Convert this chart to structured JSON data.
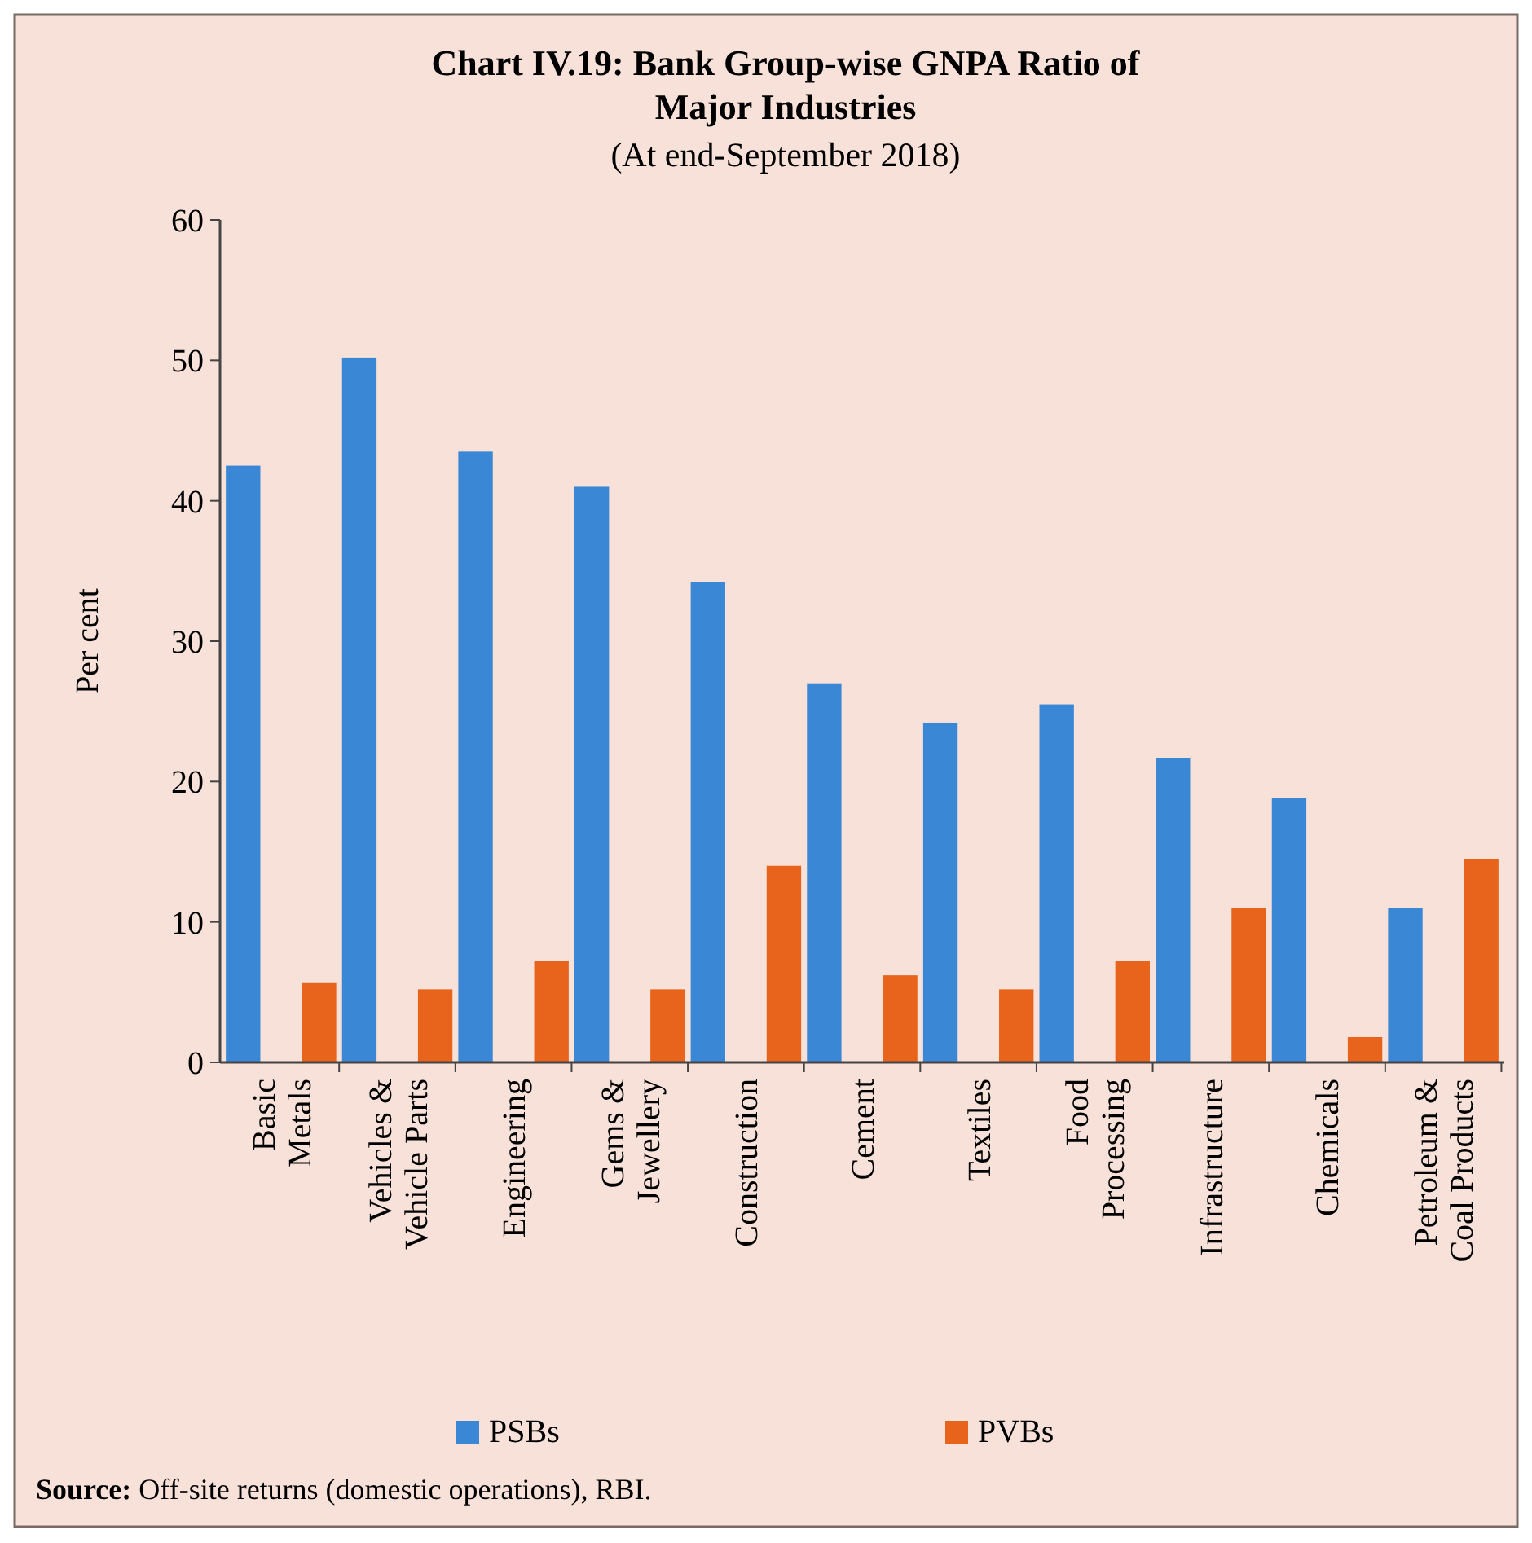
{
  "chart_data": {
    "type": "bar",
    "title": "Chart IV.19: Bank Group-wise GNPA Ratio of Major Industries",
    "subtitle": "(At end-September 2018)",
    "ylabel": "Per cent",
    "categories": [
      "Basic Metals",
      "Vehicles & Vehicle Parts",
      "Engineering",
      "Gems & Jewellery",
      "Construction",
      "Cement",
      "Textiles",
      "Food Processing",
      "Infrastructure",
      "Chemicals",
      "Petroleum & Coal Products"
    ],
    "series": [
      {
        "name": "PSBs",
        "color": "#3a87d6",
        "values": [
          42.5,
          50.2,
          43.5,
          41,
          34.2,
          27,
          24.2,
          25.5,
          21.7,
          18.8,
          11
        ]
      },
      {
        "name": "PVBs",
        "color": "#e8641c",
        "values": [
          5.7,
          5.2,
          7.2,
          5.2,
          14,
          6.2,
          5.2,
          7.2,
          11,
          1.8,
          14.5
        ]
      }
    ],
    "ylim": [
      0,
      60
    ],
    "yticks": [
      0,
      10,
      20,
      30,
      40,
      50,
      60
    ],
    "grid": false,
    "legend": "bottom",
    "annotations": [
      "Source: Off-site returns (domestic operations), RBI."
    ]
  }
}
